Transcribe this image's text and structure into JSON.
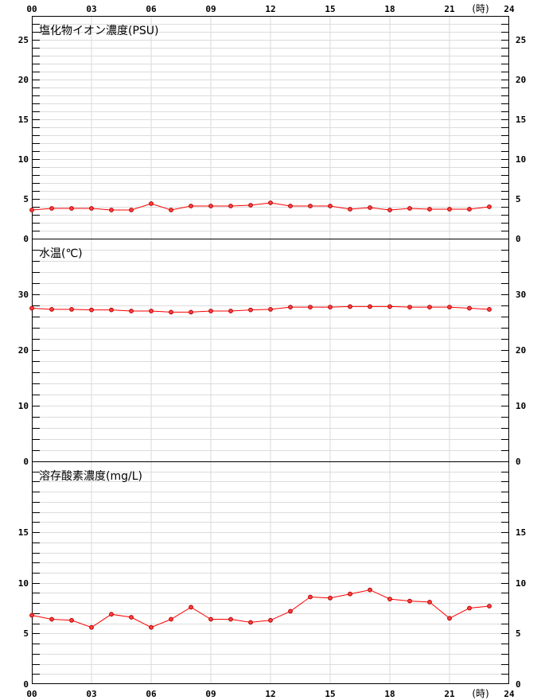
{
  "hour_unit": "(時)",
  "hours": [
    "00",
    "03",
    "06",
    "09",
    "12",
    "15",
    "18",
    "21",
    "24"
  ],
  "chart_data": [
    {
      "type": "line",
      "title": "塩化物イオン濃度(PSU)",
      "ylim": [
        0,
        28
      ],
      "yticks": [
        0,
        5,
        10,
        15,
        20,
        25
      ],
      "minor_step": 1,
      "x": [
        0,
        1,
        2,
        3,
        4,
        5,
        6,
        7,
        8,
        9,
        10,
        11,
        12,
        13,
        14,
        15,
        16,
        17,
        18,
        19,
        20,
        21,
        22,
        23
      ],
      "values": [
        3.6,
        3.8,
        3.8,
        3.8,
        3.6,
        3.6,
        4.4,
        3.6,
        4.1,
        4.1,
        4.1,
        4.2,
        4.5,
        4.1,
        4.1,
        4.1,
        3.7,
        3.9,
        3.6,
        3.8,
        3.7,
        3.7,
        3.7,
        4.0
      ],
      "color": "#ff0000"
    },
    {
      "type": "line",
      "title": "水温(℃)",
      "ylim": [
        0,
        40
      ],
      "yticks": [
        0,
        10,
        20,
        30
      ],
      "minor_step": 2,
      "x": [
        0,
        1,
        2,
        3,
        4,
        5,
        6,
        7,
        8,
        9,
        10,
        11,
        12,
        13,
        14,
        15,
        16,
        17,
        18,
        19,
        20,
        21,
        22,
        23
      ],
      "values": [
        27.5,
        27.3,
        27.3,
        27.2,
        27.2,
        27.0,
        27.0,
        26.8,
        26.8,
        27.0,
        27.0,
        27.2,
        27.3,
        27.7,
        27.7,
        27.7,
        27.8,
        27.8,
        27.8,
        27.7,
        27.7,
        27.7,
        27.5,
        27.3
      ],
      "color": "#ff0000"
    },
    {
      "type": "line",
      "title": "溶存酸素濃度(mg/L)",
      "ylim": [
        0,
        22
      ],
      "yticks": [
        0,
        5,
        10,
        15
      ],
      "minor_step": 1,
      "x": [
        0,
        1,
        2,
        3,
        4,
        5,
        6,
        7,
        8,
        9,
        10,
        11,
        12,
        13,
        14,
        15,
        16,
        17,
        18,
        19,
        20,
        21,
        22,
        23
      ],
      "values": [
        6.8,
        6.4,
        6.3,
        5.6,
        6.9,
        6.6,
        5.6,
        6.4,
        7.6,
        6.4,
        6.4,
        6.1,
        6.3,
        7.2,
        8.6,
        8.5,
        8.9,
        9.3,
        8.4,
        8.2,
        8.1,
        6.5,
        7.5,
        7.7
      ],
      "color": "#ff0000"
    }
  ]
}
